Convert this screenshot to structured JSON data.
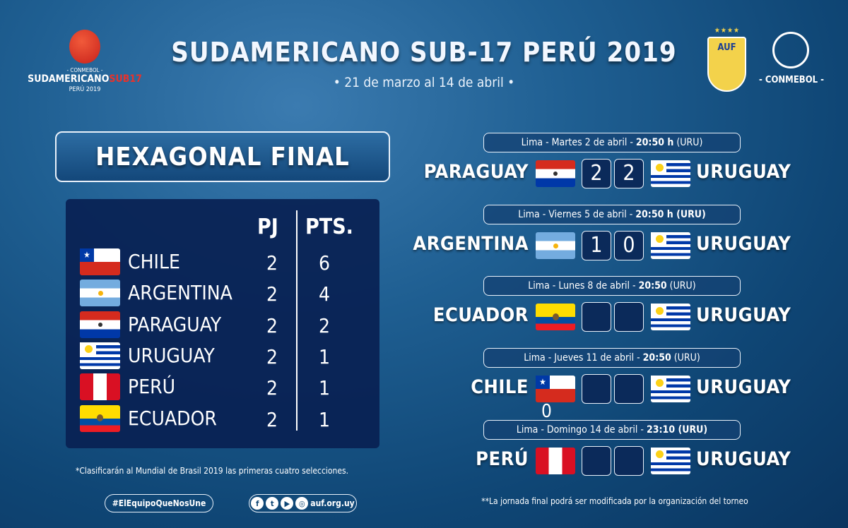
{
  "header": {
    "title": "SUDAMERICANO SUB-17 PERÚ 2019",
    "dates": "• 21 de marzo al 14 de abril •"
  },
  "logo_left": {
    "line1": "- CONMEBOL -",
    "line2": "SUDAMERICANO",
    "line2_accent": "SUB17",
    "line3": "PERÚ 2019"
  },
  "logo_right": {
    "auf_text": "AUF",
    "stars": "★★★★",
    "conmebol": "- CONMEBOL -"
  },
  "standings": {
    "title": "HEXAGONAL FINAL",
    "col_pj": "PJ",
    "col_pts": "PTS.",
    "rows": [
      {
        "team": "CHILE",
        "flag": "chile",
        "pj": "2",
        "pts": "6"
      },
      {
        "team": "ARGENTINA",
        "flag": "arg",
        "pj": "2",
        "pts": "4"
      },
      {
        "team": "PARAGUAY",
        "flag": "par",
        "pj": "2",
        "pts": "2"
      },
      {
        "team": "URUGUAY",
        "flag": "uru",
        "pj": "2",
        "pts": "1"
      },
      {
        "team": "PERÚ",
        "flag": "peru",
        "pj": "2",
        "pts": "1"
      },
      {
        "team": "ECUADOR",
        "flag": "ecu",
        "pj": "2",
        "pts": "1"
      }
    ],
    "footnote": "*Clasificarán al Mundial de Brasil 2019 las primeras cuatro selecciones."
  },
  "footer": {
    "hashtag": "#ElEquipoQueNosUne",
    "site": "auf.org.uy",
    "social_icons": [
      "facebook-icon",
      "twitter-icon",
      "youtube-icon",
      "instagram-icon"
    ]
  },
  "matches": [
    {
      "info_pre": "Lima - Martes 2 de abril - ",
      "info_time": "20:50 h",
      "info_post": " (URU)",
      "home": "PARAGUAY",
      "home_flag": "par",
      "home_score": "2",
      "away_score": "2",
      "away": "URUGUAY"
    },
    {
      "info_pre": "Lima - Viernes 5 de abril - ",
      "info_time": "20:50 h (URU)",
      "info_post": "",
      "home": "ARGENTINA",
      "home_flag": "arg",
      "home_score": "1",
      "away_score": "0",
      "away": "URUGUAY"
    },
    {
      "info_pre": "Lima - Lunes 8 de abril - ",
      "info_time": "20:50",
      "info_post": " (URU)",
      "home": "ECUADOR",
      "home_flag": "ecu",
      "home_score": "",
      "away_score": "",
      "away": "URUGUAY"
    },
    {
      "info_pre": "Lima - Jueves 11 de abril - ",
      "info_time": "20:50",
      "info_post": "  (URU)",
      "home": "CHILE",
      "home_flag": "chile",
      "home_score": "",
      "away_score": "",
      "away": "URUGUAY"
    },
    {
      "info_pre": "Lima - Domingo 14 de abril - ",
      "info_time": "23:10 (URU)",
      "info_post": "",
      "home": "PERÚ",
      "home_flag": "peru",
      "home_score": "",
      "away_score": "",
      "away": "URUGUAY"
    }
  ],
  "stray_digit": "0",
  "note": "**La jornada final podrá ser modificada por la organización del torneo",
  "colors": {
    "background": "#1f5f92",
    "panel": "#0b2a5a",
    "accent_red": "#c8211b"
  }
}
